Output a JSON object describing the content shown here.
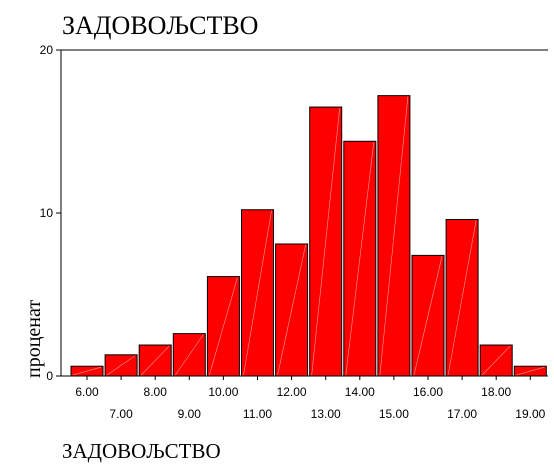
{
  "chart_data": {
    "type": "bar",
    "title": "ЗАДОВОЉСТВО",
    "xlabel": "ЗАДОВОЉСТВО",
    "ylabel": "проценат",
    "categories": [
      "6.00",
      "7.00",
      "8.00",
      "9.00",
      "10.00",
      "11.00",
      "12.00",
      "13.00",
      "14.00",
      "15.00",
      "16.00",
      "17.00",
      "18.00",
      "19.00"
    ],
    "values": [
      0.6,
      1.3,
      1.9,
      2.6,
      6.1,
      10.2,
      8.1,
      16.5,
      14.4,
      17.2,
      7.4,
      9.6,
      1.9,
      0.6
    ],
    "ylim": [
      0,
      20
    ],
    "yticks": [
      0,
      10,
      20
    ],
    "grid": false,
    "legend": "none"
  },
  "colors": {
    "bar_fill": "#ff0000",
    "bar_stroke": "#000000",
    "axis": "#000000",
    "background": "#ffffff"
  }
}
